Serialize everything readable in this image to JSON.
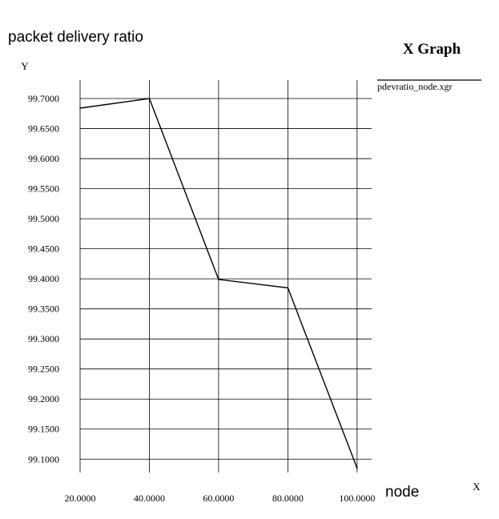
{
  "overlay": {
    "y_caption": "packet delivery ratio",
    "x_caption": "node"
  },
  "chart_data": {
    "type": "line",
    "title": "X Graph",
    "xlabel": "X",
    "ylabel": "Y",
    "x_ticks": [
      "20.0000",
      "40.0000",
      "60.0000",
      "80.0000",
      "100.0000"
    ],
    "y_ticks": [
      "99.1000",
      "99.1500",
      "99.2000",
      "99.2500",
      "99.3000",
      "99.3500",
      "99.4000",
      "99.4500",
      "99.5000",
      "99.5500",
      "99.6000",
      "99.6500",
      "99.7000"
    ],
    "xlim": [
      20,
      104.2
    ],
    "ylim": [
      99.0777,
      99.7307
    ],
    "grid": true,
    "series": [
      {
        "name": "pdevratio_node.xgr",
        "color": "#000000",
        "x": [
          20,
          40,
          60,
          80,
          100
        ],
        "y": [
          99.684,
          99.7,
          99.399,
          99.385,
          99.085
        ]
      }
    ]
  }
}
